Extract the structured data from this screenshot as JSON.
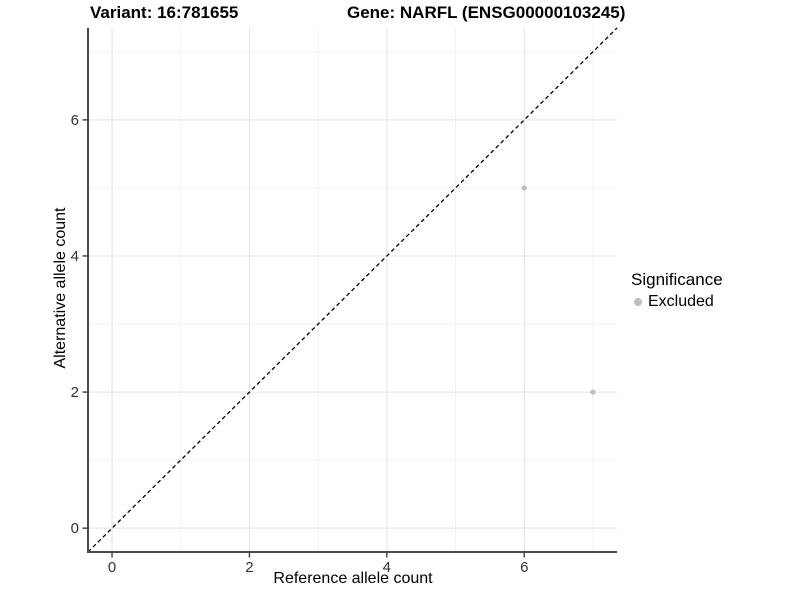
{
  "title": {
    "left": "Variant: 16:781655",
    "right": "Gene: NARFL (ENSG00000103245)"
  },
  "chart_data": {
    "type": "scatter",
    "xlabel": "Reference allele count",
    "ylabel": "Alternative allele count",
    "xlim": [
      -0.35,
      7.35
    ],
    "ylim": [
      -0.35,
      7.35
    ],
    "xticks": [
      0,
      2,
      4,
      6
    ],
    "yticks": [
      0,
      2,
      4,
      6
    ],
    "xticks_minor": [
      1,
      3,
      5,
      7
    ],
    "yticks_minor": [
      1,
      3,
      5,
      7
    ],
    "grid": "on",
    "identity_line": {
      "slope": 1,
      "intercept": 0,
      "style": "dashed",
      "color": "#000000"
    },
    "series": [
      {
        "name": "Excluded",
        "color": "#bdbdbd",
        "points": [
          [
            6,
            5
          ],
          [
            7,
            2
          ]
        ]
      }
    ],
    "legend": {
      "position": "right",
      "title": "Significance",
      "items": [
        {
          "label": "Excluded",
          "color": "#bdbdbd"
        }
      ]
    },
    "colors": {
      "axis_line": "#4a4a4a",
      "tick_label": "#333333",
      "grid_major": "#e4e4e4",
      "grid_minor": "#f2f2f2",
      "background": "#ffffff"
    }
  }
}
